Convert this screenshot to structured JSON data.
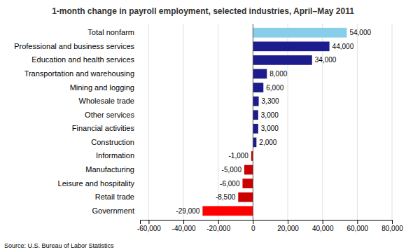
{
  "chart_data": {
    "type": "bar",
    "orientation": "horizontal",
    "title": "1-month change in payroll employment, selected industries, April–May 2011",
    "annotations": [
      "Source: U.S. Bureau of Labor Statistics"
    ],
    "categories": [
      "Government",
      "Retail trade",
      "Leisure and hospitality",
      "Manufacturing",
      "Information",
      "Construction",
      "Financial activities",
      "Other services",
      "Wholesale trade",
      "Mining and logging",
      "Transportation and warehousing",
      "Education and health services",
      "Professional and business services",
      "Total nonfarm"
    ],
    "values": [
      -29000,
      -8500,
      -6000,
      -5000,
      -1000,
      2000,
      3000,
      3000,
      3300,
      6000,
      8000,
      34000,
      44000,
      54000
    ],
    "value_labels": [
      "-29,000",
      "-8,500",
      "-6,000",
      "-5,000",
      "-1,000",
      "2,000",
      "3,000",
      "3,000",
      "3,300",
      "6,000",
      "8,000",
      "34,000",
      "44,000",
      "54,000"
    ],
    "data_labels": true,
    "colors": [
      "#FF0000",
      "#CC0000",
      "#CC0000",
      "#CC0000",
      "#CC0000",
      "#1C1C8C",
      "#1C1C8C",
      "#1C1C8C",
      "#1C1C8C",
      "#1C1C8C",
      "#1C1C8C",
      "#1C1C8C",
      "#1C1C8C",
      "#87CEEB"
    ],
    "xlim": [
      -65000,
      80000
    ],
    "xticks": [
      {
        "value": -60000,
        "label": "-60,000"
      },
      {
        "value": -40000,
        "label": "-40,000"
      },
      {
        "value": -20000,
        "label": "-20,000"
      },
      0,
      {
        "value": 20000,
        "label": "20,000"
      },
      {
        "value": 40000,
        "label": "40,000"
      },
      {
        "value": 60000,
        "label": "60,000"
      },
      {
        "value": 80000,
        "label": "80,000"
      }
    ],
    "grid": true
  }
}
